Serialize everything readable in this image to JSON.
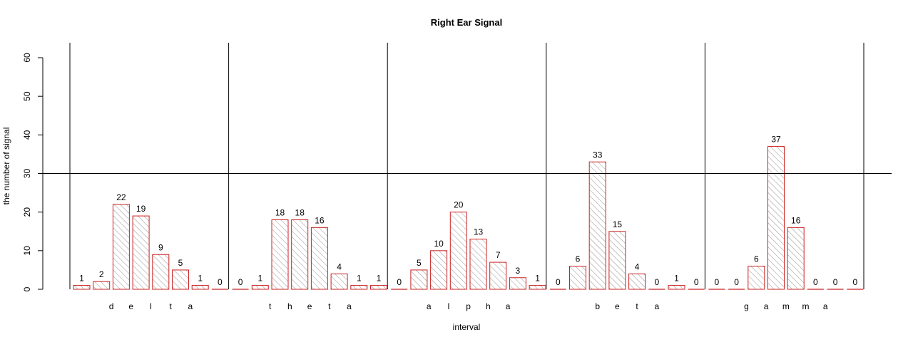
{
  "chart_data": {
    "type": "bar",
    "title": "Right Ear Signal",
    "xlabel": "interval",
    "ylabel": "the number of signal",
    "ylim": [
      0,
      60
    ],
    "yticks": [
      0,
      10,
      20,
      30,
      40,
      50,
      60
    ],
    "reference_line_y": 30,
    "grid": false,
    "legend": "none",
    "colors": {
      "bar_border": "#cc2222",
      "hatch": "#777777",
      "axis": "#000000"
    },
    "groups": [
      {
        "name": "delta",
        "letters": [
          "d",
          "e",
          "l",
          "t",
          "a"
        ],
        "values": [
          1,
          2,
          22,
          19,
          9,
          5,
          1,
          0
        ]
      },
      {
        "name": "theta",
        "letters": [
          "t",
          "h",
          "e",
          "t",
          "a"
        ],
        "values": [
          0,
          1,
          18,
          18,
          16,
          4,
          1,
          1
        ]
      },
      {
        "name": "alpha",
        "letters": [
          "a",
          "l",
          "p",
          "h",
          "a"
        ],
        "values": [
          0,
          5,
          10,
          20,
          13,
          7,
          3,
          1
        ]
      },
      {
        "name": "beta",
        "letters": [
          "b",
          "e",
          "t",
          "a"
        ],
        "values": [
          0,
          6,
          33,
          15,
          4,
          0,
          1,
          0
        ]
      },
      {
        "name": "gamma",
        "letters": [
          "g",
          "a",
          "m",
          "m",
          "a"
        ],
        "values": [
          0,
          0,
          6,
          37,
          16,
          0,
          0,
          0
        ]
      }
    ]
  }
}
